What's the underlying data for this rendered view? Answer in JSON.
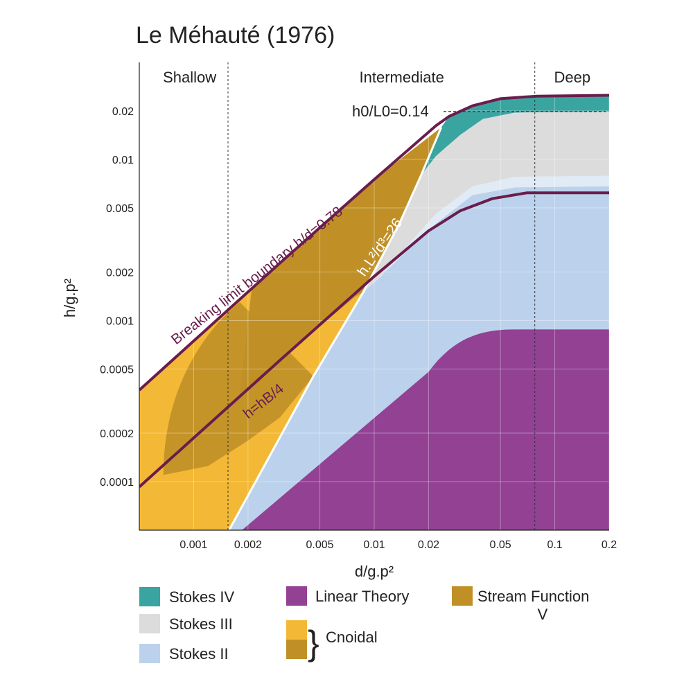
{
  "chart_data": {
    "type": "area",
    "title": "Le Méhauté (1976)",
    "xlabel": "d/g.p²",
    "ylabel": "h/g.p²",
    "x_scale": "log",
    "y_scale": "log",
    "xlim": [
      0.0005,
      0.2
    ],
    "ylim": [
      5e-05,
      0.04
    ],
    "grid": true,
    "x_ticks": [
      {
        "value": 0.001,
        "label": "0.001"
      },
      {
        "value": 0.002,
        "label": "0.002"
      },
      {
        "value": 0.005,
        "label": "0.005"
      },
      {
        "value": 0.01,
        "label": "0.01"
      },
      {
        "value": 0.02,
        "label": "0.02"
      },
      {
        "value": 0.05,
        "label": "0.05"
      },
      {
        "value": 0.1,
        "label": "0.1"
      },
      {
        "value": 0.2,
        "label": "0.2"
      }
    ],
    "y_ticks": [
      {
        "value": 0.0001,
        "label": "0.0001"
      },
      {
        "value": 0.0002,
        "label": "0.0002"
      },
      {
        "value": 0.0005,
        "label": "0.0005"
      },
      {
        "value": 0.001,
        "label": "0.001"
      },
      {
        "value": 0.002,
        "label": "0.002"
      },
      {
        "value": 0.005,
        "label": "0.005"
      },
      {
        "value": 0.01,
        "label": "0.01"
      },
      {
        "value": 0.02,
        "label": "0.02"
      }
    ],
    "regions": [
      {
        "label": "Shallow",
        "x_center": 0.00095
      },
      {
        "label": "Intermediate",
        "x_center": 0.0142
      },
      {
        "label": "Deep",
        "x_center": 0.125
      }
    ],
    "region_boundaries": [
      0.00155,
      0.0775
    ],
    "colors": {
      "stokes_iv": "#3aa5a0",
      "stokes_iii": "#dcdcdc",
      "stokes_ii": "#bcd2ec",
      "linear": "#924193",
      "stream": "#c09027",
      "cnoidal_light": "#f3b835",
      "cnoidal_dark": "#c09027",
      "curve": "#6a1d4c",
      "cnoidal_line": "#ffffff"
    },
    "series": [
      {
        "name": "Breaking limit boundary h/d=0.78",
        "points": [
          [
            0.0005,
            0.00037
          ],
          [
            0.003,
            0.00227
          ],
          [
            0.01,
            0.0075
          ],
          [
            0.022,
            0.0162
          ],
          [
            0.026,
            0.0185
          ],
          [
            0.035,
            0.0215
          ],
          [
            0.05,
            0.0238
          ],
          [
            0.08,
            0.0247
          ],
          [
            0.2,
            0.025
          ]
        ]
      },
      {
        "name": "h=hB/4",
        "points": [
          [
            0.0005,
            9.28e-05
          ],
          [
            0.003,
            0.000566
          ],
          [
            0.01,
            0.00188
          ],
          [
            0.02,
            0.0036
          ],
          [
            0.03,
            0.0048
          ],
          [
            0.045,
            0.0057
          ],
          [
            0.07,
            0.0062
          ],
          [
            0.2,
            0.0062
          ]
        ]
      },
      {
        "name": "hL²/d³=26",
        "points": [
          [
            0.00157,
            5e-05
          ],
          [
            0.0046,
            0.00045
          ],
          [
            0.0087,
            0.0015
          ],
          [
            0.0138,
            0.004
          ],
          [
            0.0182,
            0.008
          ],
          [
            0.0235,
            0.0158
          ]
        ]
      }
    ],
    "annotations": [
      {
        "text": "Breaking limit boundary h/d=0.78",
        "color": "#6a1d4c"
      },
      {
        "text": "h=hB/4",
        "color": "#6a1d4c"
      },
      {
        "text": "h.L²/d³=26",
        "color": "#ffffff"
      },
      {
        "text": "h0/L0=0.14",
        "color": "#222222"
      }
    ],
    "legend": [
      {
        "label": "Stokes IV",
        "color": "#3aa5a0"
      },
      {
        "label": "Stokes III",
        "color": "#dcdcdc"
      },
      {
        "label": "Stokes II",
        "color": "#bcd2ec"
      },
      {
        "label": "Linear Theory",
        "color": "#924193"
      },
      {
        "label": "Cnoidal",
        "colors": [
          "#f3b835",
          "#c09027"
        ]
      },
      {
        "label": "Stream Function V",
        "color": "#c09027"
      }
    ]
  }
}
